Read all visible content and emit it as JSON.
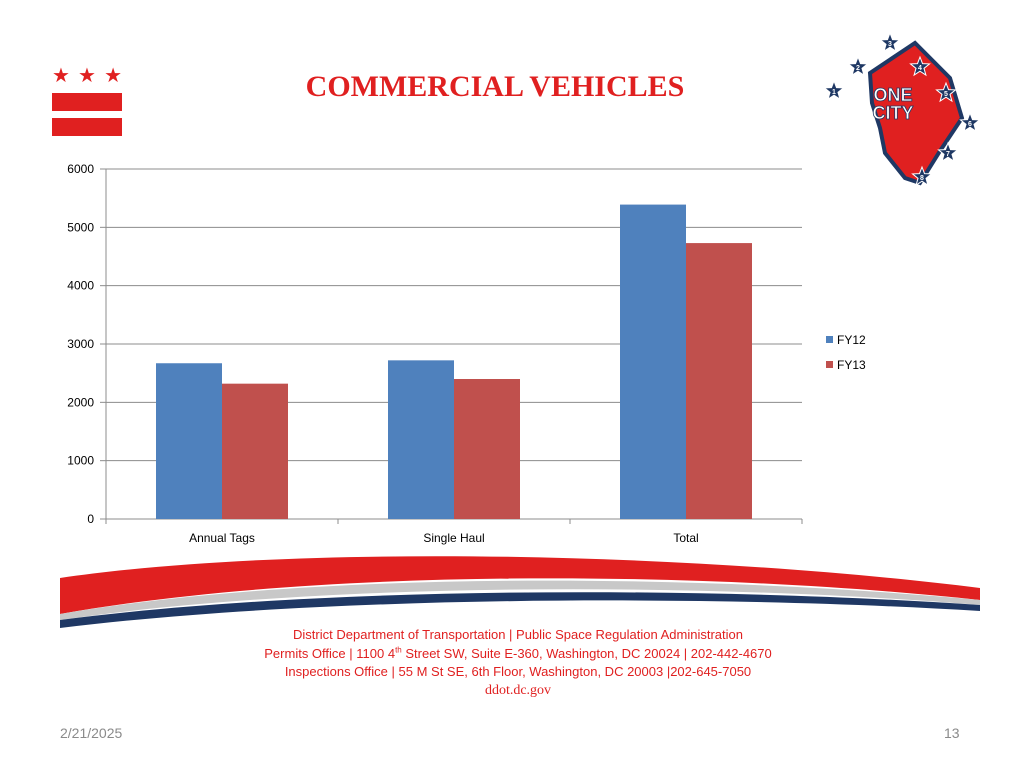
{
  "slide": {
    "title": "COMMERCIAL VEHICLES",
    "date": "2/21/2025",
    "page_number": "13"
  },
  "logo": {
    "text_line1": "ONE",
    "text_line2": "CITY",
    "star_numbers": [
      "1",
      "2",
      "3",
      "4",
      "5",
      "6",
      "7",
      "8"
    ]
  },
  "flag": {
    "stars": [
      "★",
      "★",
      "★"
    ],
    "color": "#e02020"
  },
  "footer": {
    "line1": "District Department of Transportation | Public Space Regulation Administration",
    "line2_pre": "Permits Office | 1100 4",
    "line2_sup": "th",
    "line2_post": " Street SW, Suite E-360, Washington, DC 20024 | 202-442-4670",
    "line3": "Inspections Office | 55 M St SE, 6th Floor, Washington, DC 20003  |202-645-7050",
    "website": "ddot.dc.gov"
  },
  "colors": {
    "accent_red": "#e02020",
    "fy12": "#4f81bd",
    "fy13": "#c0504d",
    "navy": "#1f3864",
    "gridline": "#8c8c8c"
  },
  "chart_data": {
    "type": "bar",
    "title": "",
    "xlabel": "",
    "ylabel": "",
    "categories": [
      "Annual Tags",
      "Single Haul",
      "Total"
    ],
    "series": [
      {
        "name": "FY12",
        "color": "#4f81bd",
        "values": [
          2670,
          2720,
          5390
        ]
      },
      {
        "name": "FY13",
        "color": "#c0504d",
        "values": [
          2320,
          2400,
          4730
        ]
      }
    ],
    "ylim": [
      0,
      6000
    ],
    "yticks": [
      0,
      1000,
      2000,
      3000,
      4000,
      5000,
      6000
    ],
    "grid": true,
    "legend": "right"
  }
}
